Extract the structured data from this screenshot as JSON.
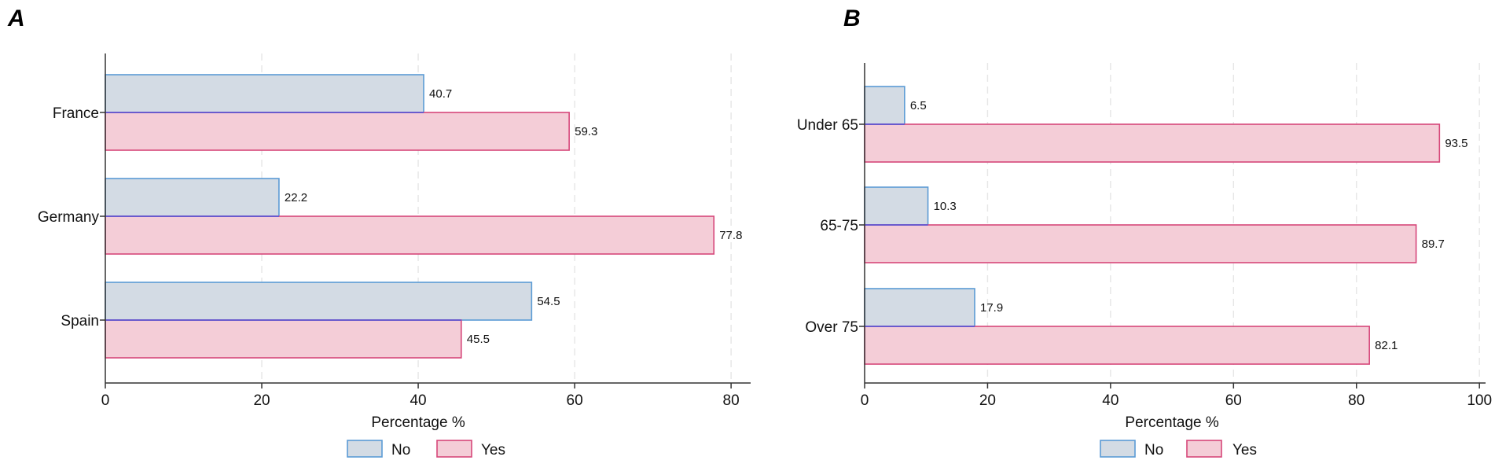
{
  "chart_data": [
    {
      "type": "bar",
      "orientation": "horizontal",
      "panel_label": "A",
      "categories": [
        "France",
        "Germany",
        "Spain"
      ],
      "series": [
        {
          "name": "No",
          "values": [
            40.7,
            22.2,
            54.5
          ],
          "value_labels": [
            "40.7",
            "22.2",
            "54.5"
          ],
          "fill": "#d3dbe4",
          "stroke": "#5b9bd5"
        },
        {
          "name": "Yes",
          "values": [
            59.3,
            77.8,
            45.5
          ],
          "value_labels": [
            "59.3",
            "77.8",
            "45.5"
          ],
          "fill": "#f4cdd7",
          "stroke": "#d6477a"
        }
      ],
      "xlabel": "Percentage %",
      "xticks": [
        0,
        20,
        40,
        60,
        80
      ],
      "xtick_labels": [
        "0",
        "20",
        "40",
        "60",
        "80"
      ],
      "xlim": [
        0,
        82.5
      ],
      "grid": "vertical dashed",
      "legend": {
        "placement": "bottom-center",
        "labels": [
          "No",
          "Yes"
        ]
      }
    },
    {
      "type": "bar",
      "orientation": "horizontal",
      "panel_label": "B",
      "categories": [
        "Under 65",
        "65-75",
        "Over 75"
      ],
      "series": [
        {
          "name": "No",
          "values": [
            6.5,
            10.3,
            17.9
          ],
          "value_labels": [
            "6.5",
            "10.3",
            "17.9"
          ],
          "fill": "#d3dbe4",
          "stroke": "#5b9bd5"
        },
        {
          "name": "Yes",
          "values": [
            93.5,
            89.7,
            82.1
          ],
          "value_labels": [
            "93.5",
            "89.7",
            "82.1"
          ],
          "fill": "#f4cdd7",
          "stroke": "#d6477a"
        }
      ],
      "xlabel": "Percentage %",
      "xticks": [
        0,
        20,
        40,
        60,
        80,
        100
      ],
      "xtick_labels": [
        "0",
        "20",
        "40",
        "60",
        "80",
        "100"
      ],
      "xlim": [
        0,
        101
      ],
      "grid": "vertical dashed",
      "legend": {
        "placement": "bottom-center",
        "labels": [
          "No",
          "Yes"
        ]
      }
    }
  ],
  "colors": {
    "axis": "#333333",
    "grid": "#e6e6e6",
    "mid_divider": "#6a5acd"
  }
}
